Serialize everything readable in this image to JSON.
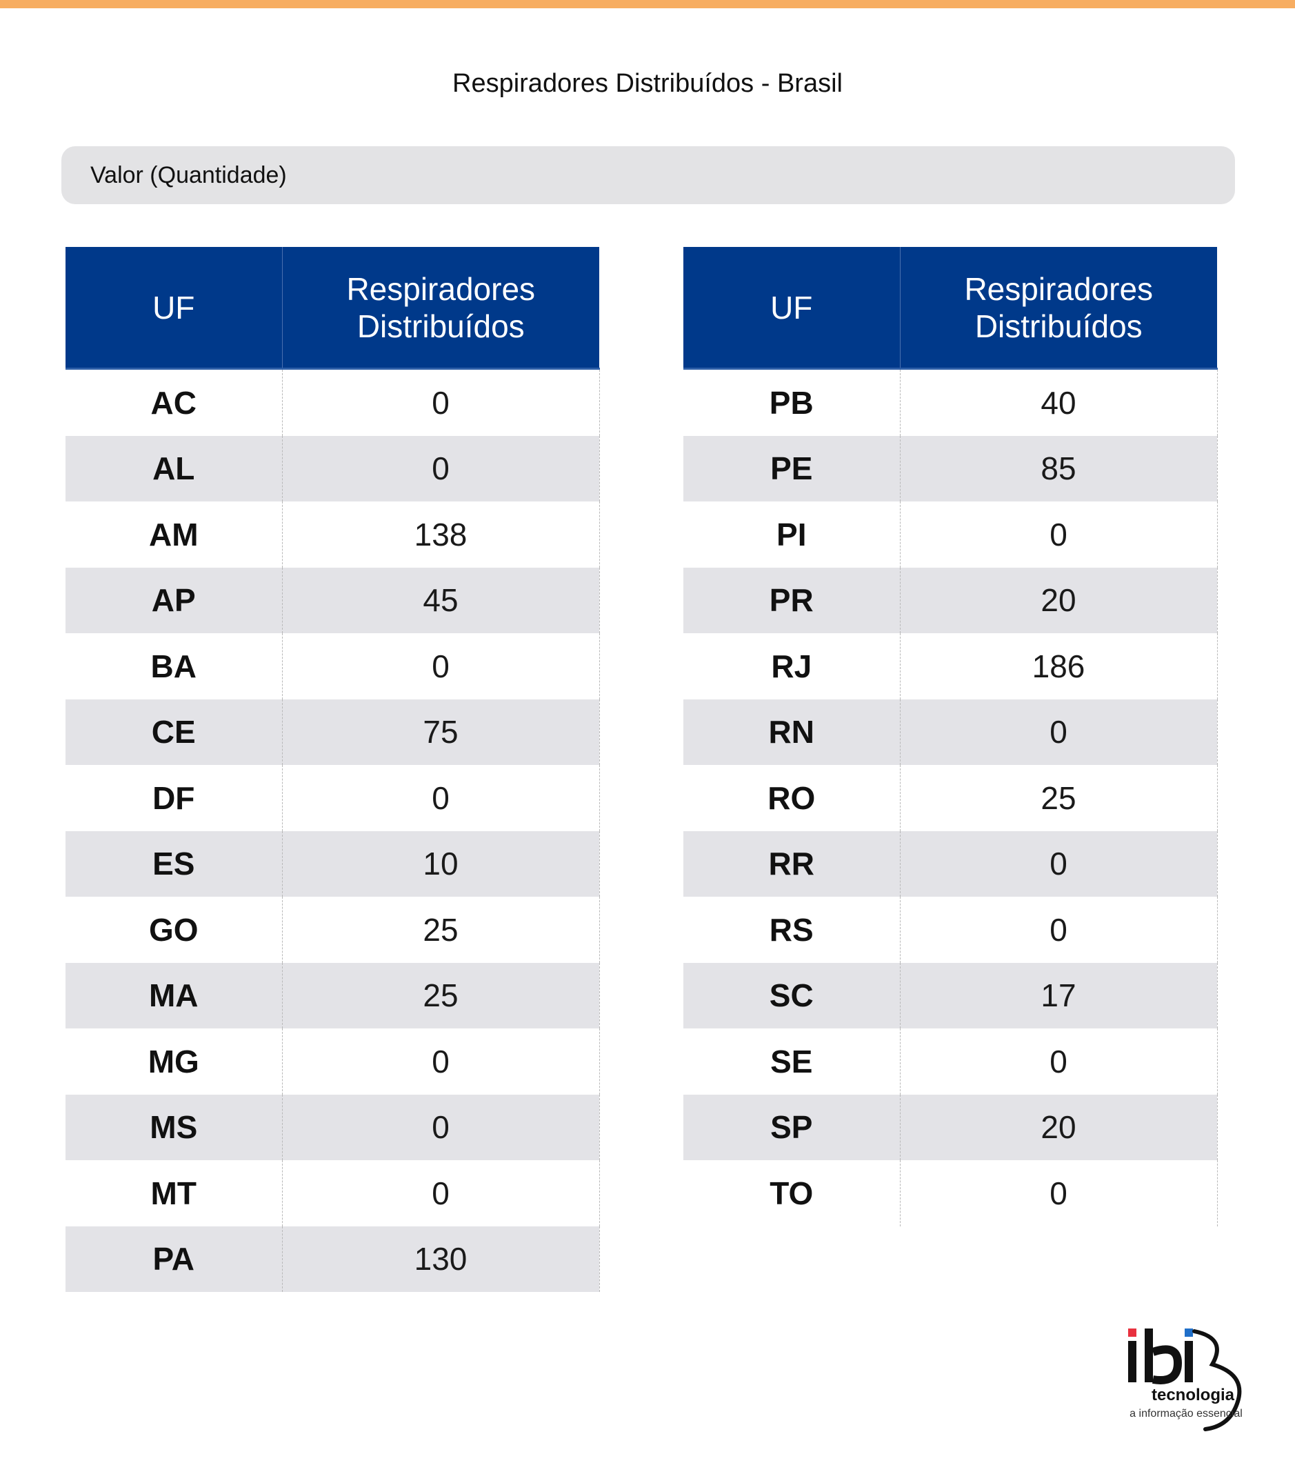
{
  "title": "Respiradores Distribuídos - Brasil",
  "filter_label": "Valor (Quantidade)",
  "table_headers": {
    "uf": "UF",
    "value_line1": "Respiradores",
    "value_line2": "Distribuídos"
  },
  "left_table": [
    {
      "uf": "AC",
      "value": "0"
    },
    {
      "uf": "AL",
      "value": "0"
    },
    {
      "uf": "AM",
      "value": "138"
    },
    {
      "uf": "AP",
      "value": "45"
    },
    {
      "uf": "BA",
      "value": "0"
    },
    {
      "uf": "CE",
      "value": "75"
    },
    {
      "uf": "DF",
      "value": "0"
    },
    {
      "uf": "ES",
      "value": "10"
    },
    {
      "uf": "GO",
      "value": "25"
    },
    {
      "uf": "MA",
      "value": "25"
    },
    {
      "uf": "MG",
      "value": "0"
    },
    {
      "uf": "MS",
      "value": "0"
    },
    {
      "uf": "MT",
      "value": "0"
    },
    {
      "uf": "PA",
      "value": "130"
    }
  ],
  "right_table": [
    {
      "uf": "PB",
      "value": "40"
    },
    {
      "uf": "PE",
      "value": "85"
    },
    {
      "uf": "PI",
      "value": "0"
    },
    {
      "uf": "PR",
      "value": "20"
    },
    {
      "uf": "RJ",
      "value": "186"
    },
    {
      "uf": "RN",
      "value": "0"
    },
    {
      "uf": "RO",
      "value": "25"
    },
    {
      "uf": "RR",
      "value": "0"
    },
    {
      "uf": "RS",
      "value": "0"
    },
    {
      "uf": "SC",
      "value": "17"
    },
    {
      "uf": "SE",
      "value": "0"
    },
    {
      "uf": "SP",
      "value": "20"
    },
    {
      "uf": "TO",
      "value": "0"
    }
  ],
  "logo": {
    "brand": "ibi",
    "name": "tecnologia",
    "tagline": "a informação essencial"
  },
  "colors": {
    "accent_bar": "#f7ad61",
    "header_bg": "#00398a",
    "stripe_bg": "#e3e3e7",
    "logo_red": "#e8313f",
    "logo_blue": "#1f6fc9"
  }
}
